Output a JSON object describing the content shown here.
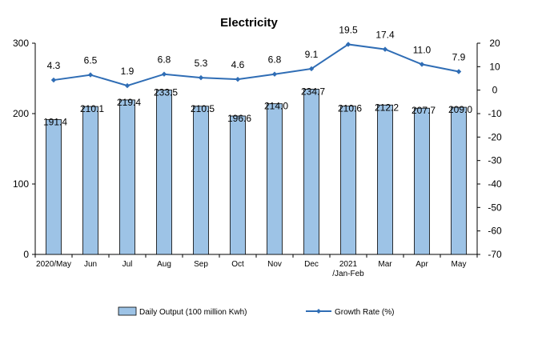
{
  "chart_data": {
    "type": "bar",
    "title": "Electricity",
    "categories": [
      "2020/May",
      "Jun",
      "Jul",
      "Aug",
      "Sep",
      "Oct",
      "Nov",
      "Dec",
      "2021\n/Jan-Feb",
      "Mar",
      "Apr",
      "May"
    ],
    "series": [
      {
        "name": "Daily Output (100 million Kwh)",
        "type": "bar",
        "axis": "left",
        "color": "#9dc3e6",
        "values": [
          191.4,
          210.1,
          219.4,
          233.5,
          210.5,
          196.6,
          214.0,
          234.7,
          210.6,
          212.2,
          207.7,
          209.0
        ]
      },
      {
        "name": "Growth Rate (%)",
        "type": "line",
        "axis": "right",
        "color": "#2f6db5",
        "values": [
          4.3,
          6.5,
          1.9,
          6.8,
          5.3,
          4.6,
          6.8,
          9.1,
          19.5,
          17.4,
          11.0,
          7.9
        ]
      }
    ],
    "y_left": {
      "min": 0,
      "max": 300,
      "ticks": [
        0,
        100,
        200,
        300
      ]
    },
    "y_right": {
      "min": -70,
      "max": 20,
      "ticks": [
        20,
        10,
        0,
        -10,
        -20,
        -30,
        -40,
        -50,
        -60,
        -70
      ]
    },
    "grid": false,
    "legend": "bottom"
  }
}
